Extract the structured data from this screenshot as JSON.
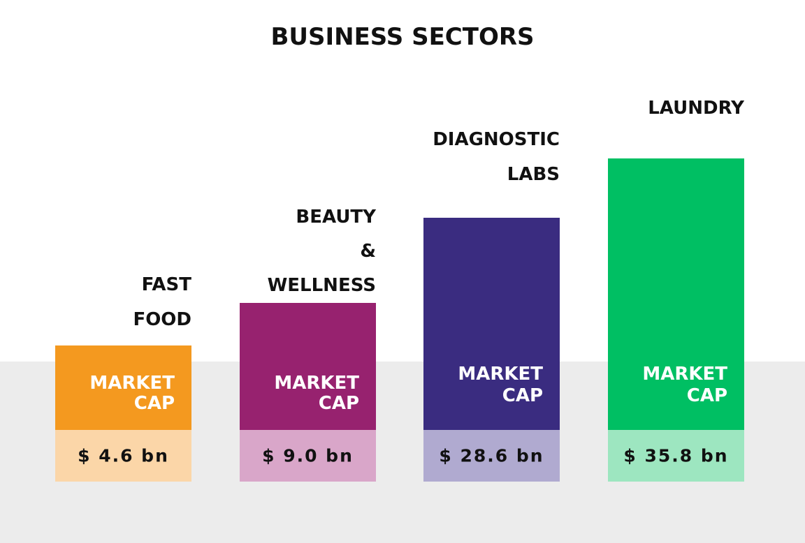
{
  "title": "BUSINESS SECTORS",
  "metric_label": [
    "MARKET",
    "CAP"
  ],
  "sectors": [
    {
      "name": [
        "FAST",
        "FOOD"
      ],
      "value": "$ 4.6 bn"
    },
    {
      "name": [
        "BEAUTY",
        "&",
        "WELLNESS"
      ],
      "value": "$ 9.0 bn"
    },
    {
      "name": [
        "DIAGNOSTIC",
        "LABS"
      ],
      "value": "$ 28.6 bn"
    },
    {
      "name": [
        "LAUNDRY"
      ],
      "value": "$ 35.8 bn"
    }
  ]
}
